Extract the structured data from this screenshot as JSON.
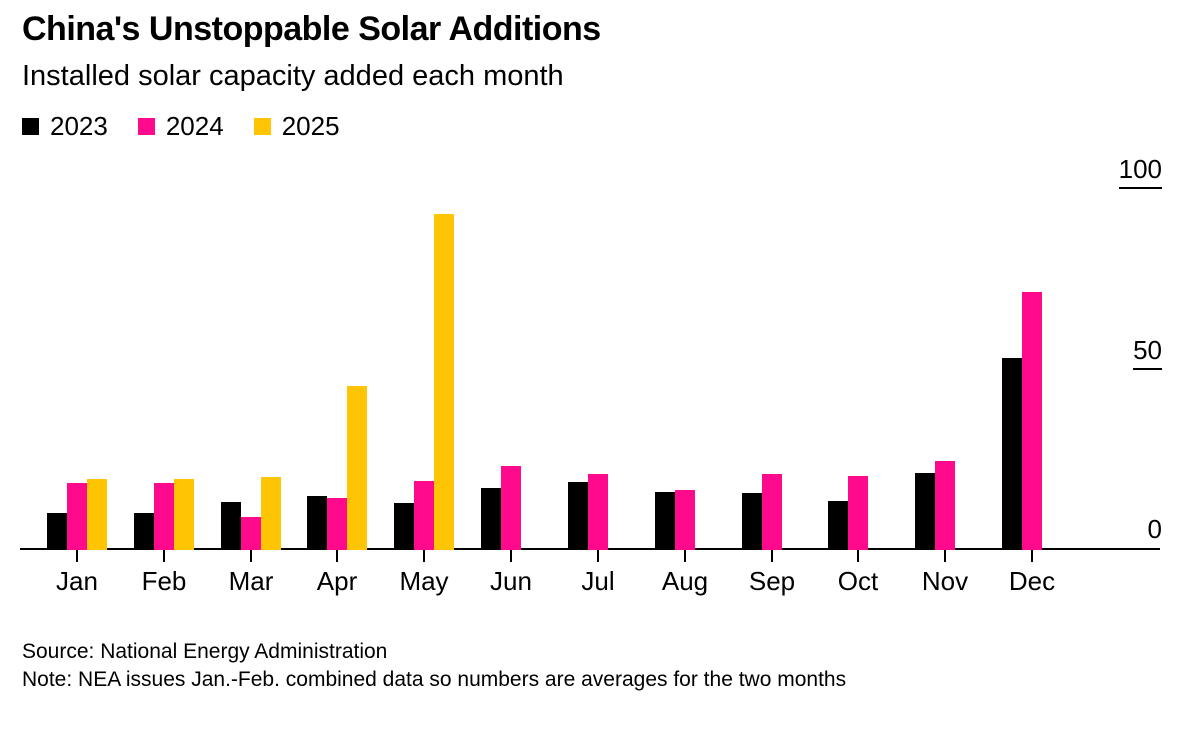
{
  "header": {
    "title": "China's Unstoppable Solar Additions",
    "subtitle": "Installed solar capacity added each month"
  },
  "footer": {
    "source": "Source: National Energy Administration",
    "note": "Note: NEA issues Jan.-Feb. combined data so numbers are averages for the two months"
  },
  "colors": {
    "series_2023": "#000000",
    "series_2024": "#FF0A8C",
    "series_2025": "#FFC404",
    "axis": "#000000",
    "background": "#FFFFFF"
  },
  "chart_data": {
    "type": "bar",
    "title": "China's Unstoppable Solar Additions",
    "subtitle": "Installed solar capacity added each month",
    "categories": [
      "Jan",
      "Feb",
      "Mar",
      "Apr",
      "May",
      "Jun",
      "Jul",
      "Aug",
      "Sep",
      "Oct",
      "Nov",
      "Dec"
    ],
    "series": [
      {
        "name": "2023",
        "color": "#000000",
        "values": [
          10.2,
          10.2,
          13.3,
          14.9,
          12.9,
          17.2,
          18.7,
          16.0,
          15.7,
          13.6,
          21.3,
          53.0
        ]
      },
      {
        "name": "2024",
        "color": "#FF0A8C",
        "values": [
          18.4,
          18.4,
          9.0,
          14.4,
          19.0,
          23.3,
          21.1,
          16.5,
          20.9,
          20.4,
          24.6,
          71.3
        ]
      },
      {
        "name": "2025",
        "color": "#FFC404",
        "values": [
          19.7,
          19.7,
          20.2,
          45.2,
          92.9,
          null,
          null,
          null,
          null,
          null,
          null,
          null
        ]
      }
    ],
    "ylim": [
      0,
      100
    ],
    "yticks": [
      0,
      50,
      100
    ],
    "grid": false,
    "legend_position": "top-left",
    "y_axis_position": "right",
    "annotations": []
  }
}
